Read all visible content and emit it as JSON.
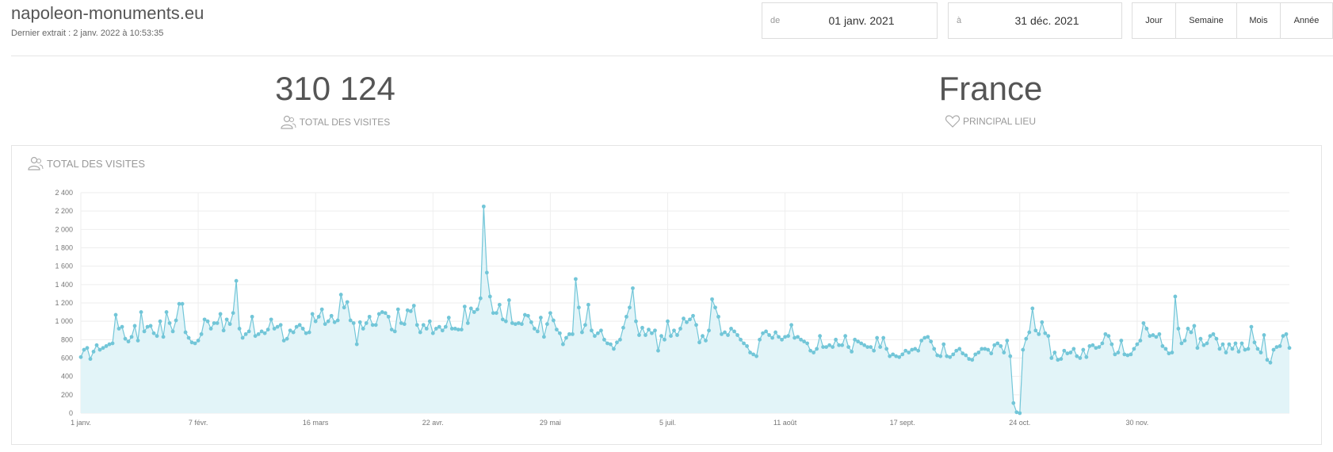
{
  "header": {
    "site": "napoleon-monuments.eu",
    "last_extract": "Dernier extrait : 2 janv. 2022 à 10:53:35"
  },
  "filters": {
    "from_label": "de",
    "from_value": "01 janv. 2021",
    "to_label": "à",
    "to_value": "31 déc. 2021",
    "periods": [
      "Jour",
      "Semaine",
      "Mois",
      "Année"
    ]
  },
  "kpis": {
    "total_visits_value": "310 124",
    "total_visits_label": "TOTAL DES VISITES",
    "main_place_value": "France",
    "main_place_label": "PRINCIPAL LIEU"
  },
  "icons": {
    "users": "users-icon",
    "heart": "heart-icon"
  },
  "colors": {
    "line": "#72c6d8",
    "fill": "#e2f4f8",
    "text": "#555555",
    "muted": "#999999"
  },
  "chart_data": {
    "type": "area",
    "title": "TOTAL DES VISITES",
    "xlabel": "",
    "ylabel": "",
    "ylim": [
      0,
      2400
    ],
    "yticks": [
      "0",
      "200",
      "400",
      "600",
      "800",
      "1 000",
      "1 200",
      "1 400",
      "1 600",
      "1 800",
      "2 000",
      "2 200",
      "2 400"
    ],
    "xtick_labels": [
      "1 janv.",
      "7 févr.",
      "16 mars",
      "22 avr.",
      "29 mai",
      "5 juil.",
      "11 août",
      "17 sept.",
      "24 oct.",
      "30 nov."
    ],
    "xtick_days": [
      0,
      37,
      74,
      111,
      148,
      185,
      222,
      259,
      296,
      333
    ],
    "series": [
      {
        "x_start": "2021-01-01",
        "values": [
          610,
          690,
          710,
          590,
          670,
          740,
          690,
          710,
          730,
          750,
          760,
          1070,
          920,
          940,
          810,
          780,
          830,
          950,
          790,
          1100,
          890,
          940,
          950,
          870,
          840,
          1000,
          830,
          1100,
          980,
          890,
          1010,
          1190,
          1190,
          880,
          820,
          770,
          760,
          790,
          860,
          1020,
          1000,
          920,
          980,
          980,
          1080,
          900,
          1020,
          970,
          1090,
          1440,
          920,
          820,
          860,
          890,
          1050,
          840,
          860,
          890,
          870,
          910,
          1020,
          920,
          940,
          960,
          790,
          810,
          900,
          880,
          940,
          960,
          920,
          870,
          880,
          1080,
          1000,
          1050,
          1130,
          970,
          1000,
          1060,
          990,
          1010,
          1290,
          1150,
          1210,
          1010,
          980,
          750,
          990,
          920,
          980,
          1050,
          960,
          960,
          1080,
          1100,
          1090,
          1050,
          910,
          890,
          1130,
          980,
          970,
          1120,
          1110,
          1170,
          960,
          880,
          960,
          920,
          1000,
          870,
          920,
          940,
          900,
          940,
          1040,
          920,
          920,
          910,
          910,
          1160,
          980,
          1140,
          1100,
          1130,
          1250,
          2250,
          1530,
          1270,
          1090,
          1090,
          1180,
          1020,
          1000,
          1230,
          980,
          970,
          980,
          970,
          1070,
          1060,
          990,
          920,
          890,
          1040,
          830,
          970,
          1090,
          1010,
          910,
          870,
          750,
          820,
          860,
          860,
          1460,
          1150,
          880,
          960,
          1180,
          900,
          840,
          870,
          900,
          800,
          760,
          750,
          700,
          770,
          800,
          930,
          1050,
          1150,
          1360,
          1000,
          850,
          930,
          850,
          910,
          870,
          900,
          680,
          840,
          800,
          1000,
          840,
          900,
          850,
          920,
          1030,
          990,
          1020,
          1060,
          960,
          770,
          840,
          790,
          900,
          1240,
          1150,
          1050,
          860,
          880,
          850,
          920,
          890,
          850,
          800,
          760,
          730,
          660,
          640,
          620,
          800,
          870,
          890,
          850,
          820,
          880,
          830,
          800,
          830,
          840,
          960,
          820,
          830,
          800,
          780,
          760,
          680,
          660,
          700,
          840,
          720,
          720,
          740,
          720,
          800,
          740,
          740,
          840,
          720,
          670,
          800,
          780,
          760,
          740,
          720,
          720,
          680,
          820,
          720,
          820,
          700,
          620,
          640,
          620,
          610,
          640,
          680,
          660,
          690,
          700,
          680,
          790,
          820,
          830,
          780,
          700,
          630,
          620,
          750,
          620,
          610,
          640,
          680,
          700,
          650,
          630,
          590,
          580,
          640,
          660,
          700,
          700,
          690,
          650,
          740,
          760,
          730,
          660,
          790,
          620,
          110,
          10,
          0,
          690,
          810,
          880,
          1140,
          900,
          860,
          990,
          870,
          840,
          600,
          660,
          580,
          590,
          680,
          650,
          660,
          700,
          620,
          600,
          690,
          610,
          730,
          740,
          710,
          720,
          760,
          860,
          840,
          750,
          640,
          660,
          790,
          640,
          630,
          640,
          700,
          750,
          790,
          980,
          920,
          840,
          850,
          830,
          860,
          730,
          700,
          650,
          660,
          1270,
          920,
          760,
          790,
          920,
          880,
          950,
          710,
          810,
          740,
          760,
          840,
          860,
          810,
          700,
          750,
          660,
          750,
          700,
          760,
          670,
          760,
          690,
          700,
          940,
          770,
          700,
          660,
          850,
          580,
          550,
          690,
          720,
          730,
          840,
          860,
          710
        ]
      }
    ],
    "grid": true,
    "legend": "none"
  }
}
